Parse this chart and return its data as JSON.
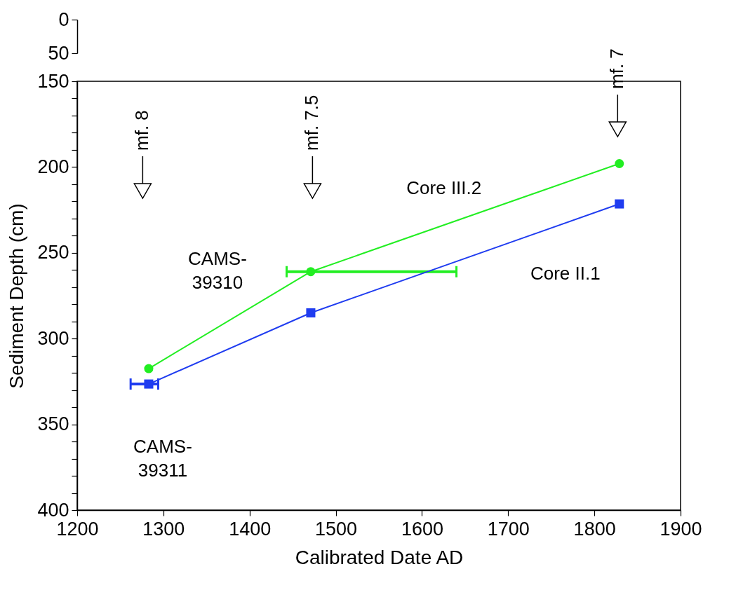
{
  "chart_data": [
    {
      "type": "line",
      "xlim": [
        1200,
        1900
      ],
      "ylim": [
        50,
        0
      ],
      "yticks": [
        0,
        50
      ],
      "tick_labels": "y"
    },
    {
      "type": "line",
      "xlabel": "Calibrated Date AD",
      "ylabel": "Sediment Depth (cm)",
      "xlim": [
        1200,
        1900
      ],
      "ylim": [
        400,
        150
      ],
      "xticks": [
        1200,
        1300,
        1400,
        1500,
        1600,
        1700,
        1800,
        1900
      ],
      "yticks": [
        150,
        {
          "value": 160,
          "label": null
        },
        {
          "value": 170,
          "label": null
        },
        {
          "value": 180,
          "label": null
        },
        {
          "value": 190,
          "label": null
        },
        200,
        {
          "value": 210,
          "label": null
        },
        {
          "value": 220,
          "label": null
        },
        {
          "value": 230,
          "label": null
        },
        {
          "value": 240,
          "label": null
        },
        250,
        {
          "value": 260,
          "label": null
        },
        {
          "value": 270,
          "label": null
        },
        {
          "value": 280,
          "label": null
        },
        {
          "value": 290,
          "label": null
        },
        300,
        {
          "value": 310,
          "label": null
        },
        {
          "value": 320,
          "label": null
        },
        {
          "value": 330,
          "label": null
        },
        {
          "value": 340,
          "label": null
        },
        350,
        {
          "value": 360,
          "label": null
        },
        {
          "value": 370,
          "label": null
        },
        {
          "value": 380,
          "label": null
        },
        {
          "value": 390,
          "label": null
        },
        400
      ],
      "x": [
        1283,
        1471,
        1829
      ],
      "series": [
        {
          "name": "Core III.2",
          "color": "#22ee22",
          "marker": "circle",
          "values": [
            317.5,
            261,
            198
          ],
          "xerrors": [
            null,
            [
              1443,
              1640
            ],
            null
          ]
        },
        {
          "name": "Core II.1",
          "color": "#1f3cf0",
          "marker": "square",
          "values": [
            326.5,
            285,
            221.5
          ],
          "xerrors": [
            [
              1262,
              1294
            ],
            null,
            null
          ]
        }
      ],
      "annotations": [
        "CAMS-\n39310",
        "CAMS-\n39311"
      ],
      "ref_lines": [
        {
          "axis": "x",
          "value": 1276,
          "label": "mf. 8"
        },
        {
          "axis": "x",
          "value": 1473,
          "label": "mf. 7.5"
        },
        {
          "axis": "x",
          "value": 1827,
          "label": "mf. 7"
        }
      ]
    }
  ]
}
